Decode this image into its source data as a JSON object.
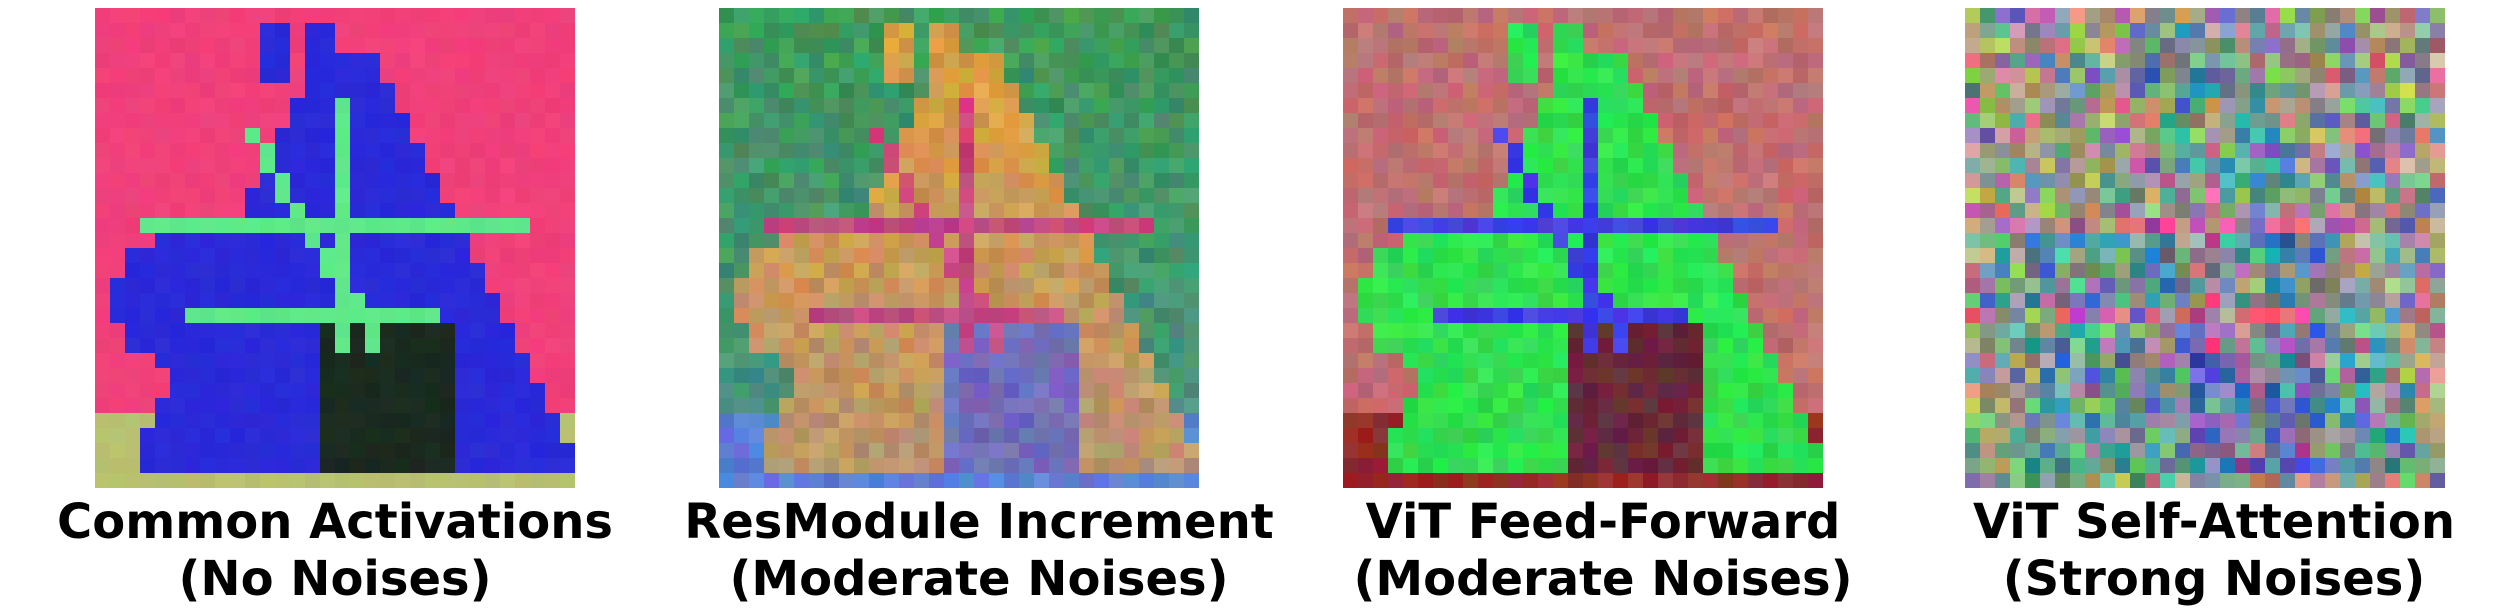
{
  "figure": {
    "panels": [
      {
        "caption_line1": "Common Activations",
        "caption_line2": "(No Noises)",
        "image_subject": "pixelated horse head, pink background, blue head, green bridle",
        "palette": {
          "bg": "#f0407a",
          "head": "#2a2ad8",
          "accent": "#5fe889",
          "shadow": "#1a2a20",
          "ground": "#b8c070"
        }
      },
      {
        "caption_line1": "ResModule Increment",
        "caption_line2": "(Moderate Noises)",
        "image_subject": "blurred pixelated horse head, yellow and pink tones on green and blue",
        "palette": {
          "bg": "#3f9a5a",
          "head": "#e0a040",
          "accent": "#d84070",
          "shadow": "#7a6ab0",
          "ground": "#5a80d8"
        }
      },
      {
        "caption_line1": "ViT Feed-Forward",
        "caption_line2": "(Moderate Noises)",
        "image_subject": "pixelated horse head, green head with blue outlines on orange-purple background",
        "palette": {
          "bg": "#c07070",
          "head": "#30e050",
          "accent": "#4040e0",
          "shadow": "#6a2a3a",
          "ground": "#902a2a"
        }
      },
      {
        "caption_line1": "ViT Self-Attention",
        "caption_line2": "(Strong Noises)",
        "image_subject": "heavily noisy pixelated horse silhouette in mixed colors",
        "palette": {
          "bg": "#b0a080",
          "head": "#40a0a0",
          "accent": "#e06090",
          "shadow": "#5060c0",
          "ground": "#a0c060"
        }
      }
    ]
  }
}
